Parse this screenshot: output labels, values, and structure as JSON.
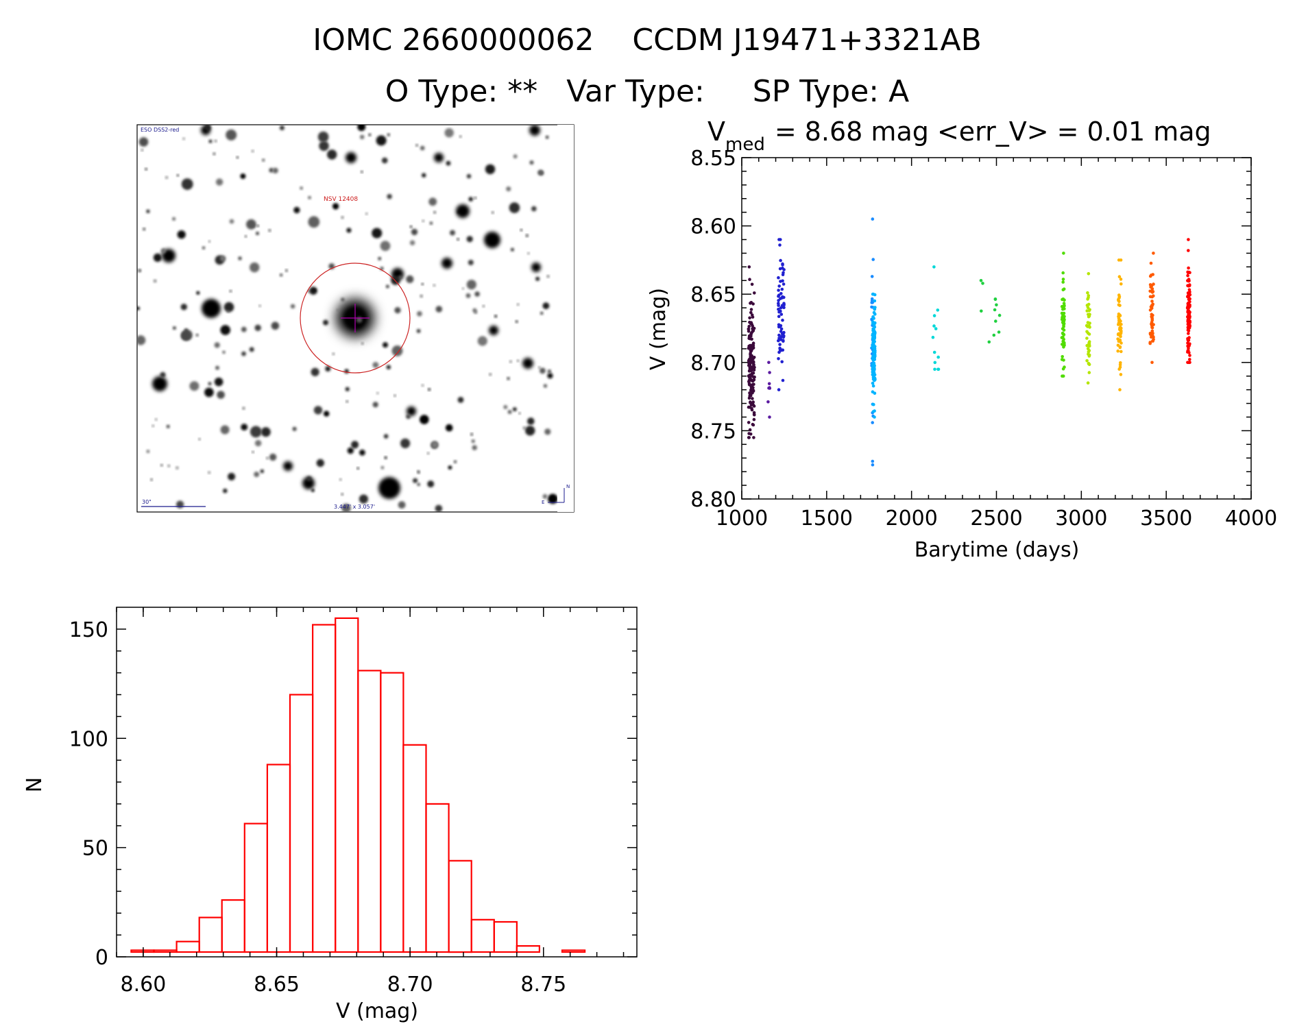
{
  "header": {
    "title": "IOMC 2660000062    CCDM J19471+3321AB",
    "subtitle": "O Type: **   Var Type:     SP Type: A"
  },
  "finder": {
    "survey_label": "ESO DSS2-red",
    "target_label": "NSV 12408",
    "scale_label": "30\"",
    "fov_label": "3.447' x 3.057'",
    "north_label": "N",
    "east_label": "E"
  },
  "lightcurve": {
    "title_prefix": "V",
    "title_subscript": "med",
    "title_rest": "= 8.68 mag <err_V> = 0.01 mag",
    "xlabel": "Barytime (days)",
    "ylabel": "V (mag)"
  },
  "histogram": {
    "xlabel": "V (mag)",
    "ylabel": "N"
  },
  "chart_data": [
    {
      "type": "scatter",
      "name": "lightcurve",
      "title": "V_med = 8.68 mag <err_V> = 0.01 mag",
      "xlabel": "Barytime (days)",
      "ylabel": "V (mag)",
      "xlim": [
        1000,
        4000
      ],
      "ylim": [
        8.55,
        8.8
      ],
      "y_inverted": true,
      "xticks": [
        1000,
        1500,
        2000,
        2500,
        3000,
        3500,
        4000
      ],
      "yticks": [
        8.55,
        8.6,
        8.65,
        8.7,
        8.75,
        8.8
      ],
      "groups": [
        {
          "color": "#3b0a3b",
          "x": [
            1040,
            1075
          ],
          "y_min": 8.63,
          "y_max": 8.755,
          "center": 8.7,
          "count": 160
        },
        {
          "color": "#5a1aa0",
          "x": [
            1155,
            1165
          ],
          "y_min": 8.7,
          "y_max": 8.74,
          "center": 8.72,
          "count": 8
        },
        {
          "color": "#2020d0",
          "x": [
            1215,
            1250
          ],
          "y_min": 8.61,
          "y_max": 8.72,
          "center": 8.66,
          "count": 70
        },
        {
          "color": "#1a8cff",
          "x": [
            1765,
            1775
          ],
          "y_min": 8.595,
          "y_max": 8.775,
          "center": 8.69,
          "count": 30
        },
        {
          "color": "#00b4ff",
          "x": [
            1770,
            1785
          ],
          "y_min": 8.65,
          "y_max": 8.74,
          "center": 8.69,
          "count": 130
        },
        {
          "color": "#00d8d8",
          "x": [
            2125,
            2160
          ],
          "y_min": 8.63,
          "y_max": 8.705,
          "center": 8.69,
          "count": 12
        },
        {
          "color": "#20d040",
          "x": [
            2400,
            2520
          ],
          "y_min": 8.64,
          "y_max": 8.685,
          "center": 8.66,
          "count": 12
        },
        {
          "color": "#50dc00",
          "x": [
            2885,
            2900
          ],
          "y_min": 8.62,
          "y_max": 8.71,
          "center": 8.67,
          "count": 60
        },
        {
          "color": "#b4e600",
          "x": [
            3030,
            3050
          ],
          "y_min": 8.635,
          "y_max": 8.715,
          "center": 8.675,
          "count": 45
        },
        {
          "color": "#ffb400",
          "x": [
            3215,
            3235
          ],
          "y_min": 8.625,
          "y_max": 8.72,
          "center": 8.675,
          "count": 60
        },
        {
          "color": "#ff5a00",
          "x": [
            3405,
            3425
          ],
          "y_min": 8.62,
          "y_max": 8.7,
          "center": 8.665,
          "count": 55
        },
        {
          "color": "#ff0000",
          "x": [
            3625,
            3640
          ],
          "y_min": 8.61,
          "y_max": 8.7,
          "center": 8.665,
          "count": 110
        }
      ]
    },
    {
      "type": "bar",
      "name": "histogram",
      "xlabel": "V (mag)",
      "ylabel": "N",
      "xlim": [
        8.59,
        8.785
      ],
      "ylim": [
        0,
        160
      ],
      "xticks": [
        8.6,
        8.65,
        8.7,
        8.75
      ],
      "yticks": [
        0,
        50,
        100,
        150
      ],
      "bin_edges": [
        8.5955,
        8.604,
        8.6125,
        8.621,
        8.6295,
        8.638,
        8.6465,
        8.655,
        8.6635,
        8.672,
        8.6805,
        8.689,
        8.6975,
        8.706,
        8.7145,
        8.723,
        8.7315,
        8.74,
        8.7485,
        8.757,
        8.7655,
        8.774
      ],
      "values": [
        3,
        3,
        7,
        18,
        26,
        61,
        88,
        120,
        152,
        155,
        131,
        130,
        97,
        70,
        44,
        17,
        16,
        5,
        2,
        3,
        2
      ],
      "color": "#ff0000"
    }
  ]
}
